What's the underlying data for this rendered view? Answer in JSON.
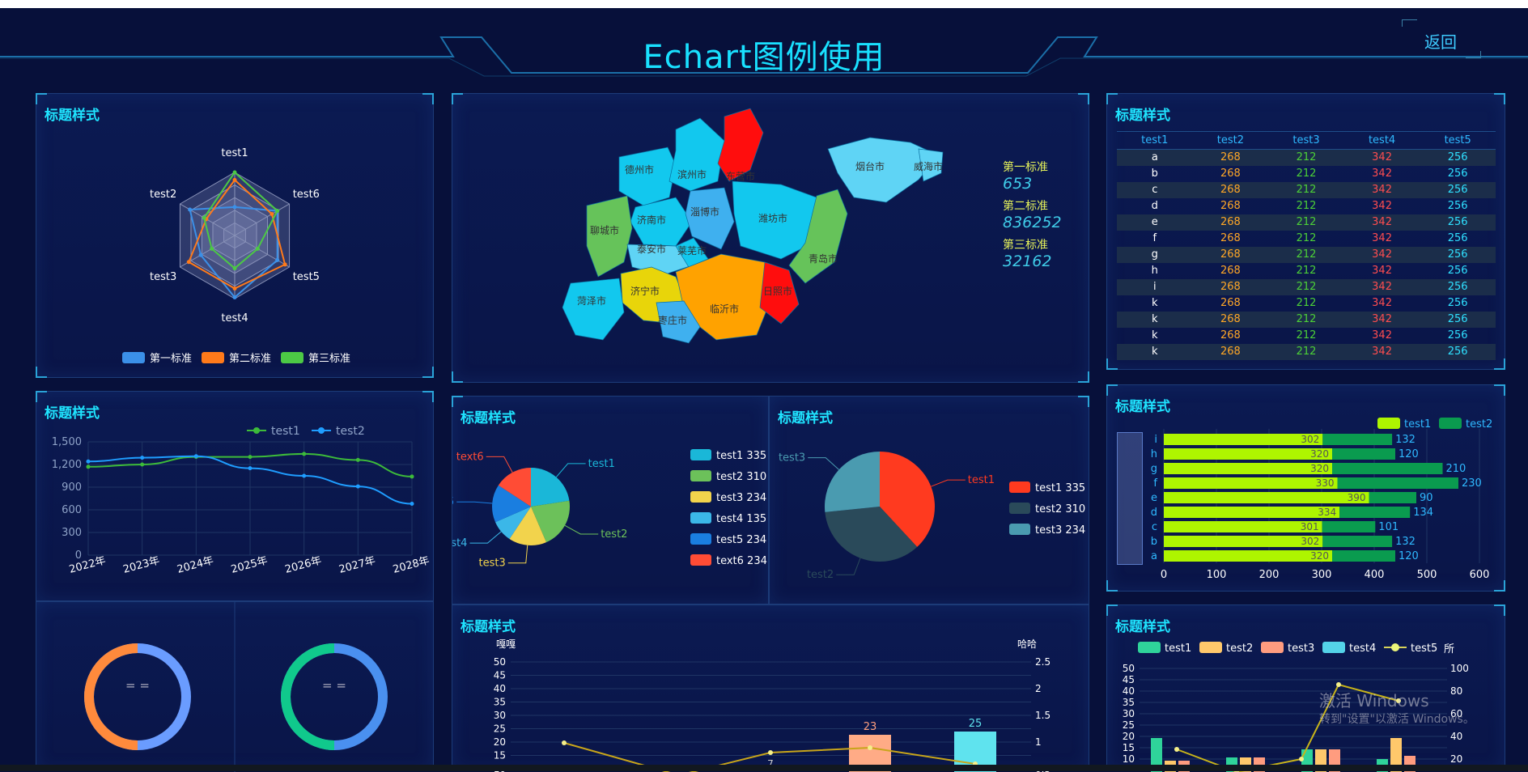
{
  "header": {
    "title": "Echart图例使用",
    "back_label": "返回"
  },
  "panel_title": "标题样式",
  "radar": {
    "indicators": [
      "test1",
      "test6",
      "test5",
      "test4",
      "test3",
      "test2"
    ],
    "legend": [
      "第一标准",
      "第二标准",
      "第三标准"
    ],
    "colors": [
      "#3b90e8",
      "#ff7a1a",
      "#4cc945"
    ]
  },
  "map": {
    "cities": [
      "德州市",
      "滨州市",
      "东营市",
      "烟台市",
      "威海市",
      "济南市",
      "淄博市",
      "潍坊市",
      "聊城市",
      "泰安市",
      "莱芜市",
      "青岛市",
      "济宁市",
      "菏泽市",
      "临沂市",
      "日照市",
      "枣庄市"
    ],
    "stats": [
      {
        "label": "第一标准",
        "value": "653"
      },
      {
        "label": "第二标准",
        "value": "836252"
      },
      {
        "label": "第三标准",
        "value": "32162"
      }
    ]
  },
  "table": {
    "headers": [
      "test1",
      "test2",
      "test3",
      "test4",
      "test5"
    ],
    "rows": [
      [
        "a",
        "268",
        "212",
        "342",
        "256"
      ],
      [
        "b",
        "268",
        "212",
        "342",
        "256"
      ],
      [
        "c",
        "268",
        "212",
        "342",
        "256"
      ],
      [
        "d",
        "268",
        "212",
        "342",
        "256"
      ],
      [
        "e",
        "268",
        "212",
        "342",
        "256"
      ],
      [
        "f",
        "268",
        "212",
        "342",
        "256"
      ],
      [
        "g",
        "268",
        "212",
        "342",
        "256"
      ],
      [
        "h",
        "268",
        "212",
        "342",
        "256"
      ],
      [
        "i",
        "268",
        "212",
        "342",
        "256"
      ],
      [
        "k",
        "268",
        "212",
        "342",
        "256"
      ],
      [
        "k",
        "268",
        "212",
        "342",
        "256"
      ],
      [
        "k",
        "268",
        "212",
        "342",
        "256"
      ],
      [
        "k",
        "268",
        "212",
        "342",
        "256"
      ]
    ],
    "col_colors": [
      "#ffffff",
      "#ffa726",
      "#4cd137",
      "#ff4d4f",
      "#2fe0ff"
    ]
  },
  "donuts": [
    {
      "label": "= ="
    },
    {
      "label": "= ="
    }
  ],
  "chart_data": [
    {
      "type": "line",
      "x": [
        "2022年",
        "2023年",
        "2024年",
        "2025年",
        "2026年",
        "2027年",
        "2028年"
      ],
      "ylim": [
        0,
        1500
      ],
      "yticks": [
        "0",
        "300",
        "600",
        "900",
        "1,200",
        "1,500"
      ],
      "series": [
        {
          "name": "test1",
          "color": "#3dbb3a",
          "values": [
            1170,
            1200,
            1300,
            1300,
            1340,
            1260,
            1040
          ]
        },
        {
          "name": "test2",
          "color": "#1f9dff",
          "values": [
            1240,
            1290,
            1310,
            1150,
            1050,
            910,
            680
          ]
        }
      ]
    },
    {
      "type": "pie",
      "legend": [
        {
          "name": "test1",
          "value": 335,
          "color": "#1ab7d8"
        },
        {
          "name": "test2",
          "value": 310,
          "color": "#6cc15a"
        },
        {
          "name": "test3",
          "value": 234,
          "color": "#f2d34c"
        },
        {
          "name": "test4",
          "value": 135,
          "color": "#3bb7e8"
        },
        {
          "name": "test5",
          "value": 234,
          "color": "#1a7ee0"
        },
        {
          "name": "text6",
          "value": 234,
          "color": "#ff4c35"
        }
      ]
    },
    {
      "type": "pie",
      "legend": [
        {
          "name": "test1",
          "value": 335,
          "color": "#ff3a1f"
        },
        {
          "name": "test2",
          "value": 310,
          "color": "#2a4a5a"
        },
        {
          "name": "test3",
          "value": 234,
          "color": "#4a9bb0"
        }
      ]
    },
    {
      "type": "bar",
      "categories": [
        "i",
        "h",
        "g",
        "f",
        "e",
        "d",
        "c",
        "b",
        "a"
      ],
      "xticks": [
        "0",
        "100",
        "200",
        "300",
        "400",
        "500",
        "600"
      ],
      "xlim": [
        0,
        600
      ],
      "series": [
        {
          "name": "test1",
          "color": "#aef500",
          "values": [
            302,
            320,
            320,
            330,
            390,
            334,
            301,
            302,
            320
          ]
        },
        {
          "name": "test2",
          "color": "#0a9b4f",
          "values": [
            132,
            120,
            210,
            230,
            90,
            134,
            101,
            132,
            120
          ]
        }
      ]
    },
    {
      "type": "bar",
      "ylabel_left": "嘎嘎",
      "ylabel_right": "哈哈",
      "yticks_left": [
        "50",
        "45",
        "40",
        "35",
        "30",
        "25",
        "20",
        "15",
        "10"
      ],
      "yticks_right": [
        "2.5",
        "2",
        "1.5",
        "1",
        "0.5"
      ],
      "data_labels": [
        "7",
        "23",
        "25"
      ]
    },
    {
      "type": "bar",
      "legend": [
        {
          "name": "test1",
          "color": "#2fd39a"
        },
        {
          "name": "test2",
          "color": "#ffc86b"
        },
        {
          "name": "test3",
          "color": "#ff9c7f"
        },
        {
          "name": "test4",
          "color": "#54d3e8"
        },
        {
          "name": "test5",
          "color": "#ecf57a"
        }
      ],
      "right_label": "所",
      "yticks_left": [
        "50",
        "45",
        "40",
        "35",
        "30",
        "25",
        "20",
        "15",
        "10"
      ],
      "yticks_right": [
        "100",
        "80",
        "60",
        "40",
        "20"
      ]
    }
  ],
  "watermark": {
    "line1": "激活 Windows",
    "line2": "转到\"设置\"以激活 Windows。"
  }
}
